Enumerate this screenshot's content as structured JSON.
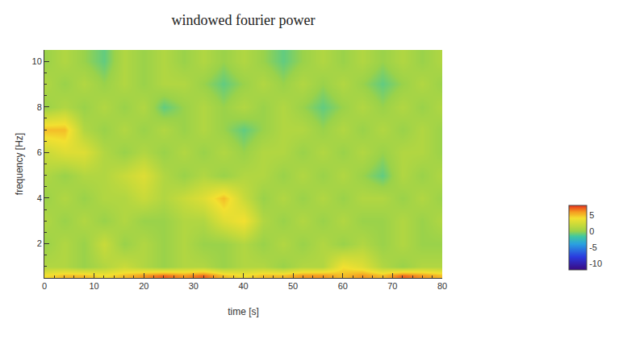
{
  "chart_data": {
    "type": "heatmap",
    "title": "windowed fourier power",
    "x_label": "time [s]",
    "y_label": "frequency [Hz]",
    "x": [
      0,
      4,
      8,
      12,
      16,
      20,
      24,
      28,
      32,
      36,
      40,
      44,
      48,
      52,
      56,
      60,
      64,
      68,
      72,
      76,
      80
    ],
    "y": [
      0.6,
      1,
      2,
      3,
      4,
      5,
      6,
      7,
      8,
      9,
      10
    ],
    "z": [
      [
        4,
        5,
        5,
        4,
        5,
        6,
        7,
        6,
        7,
        5,
        4,
        5,
        5,
        6,
        6,
        5,
        6,
        5,
        7,
        6,
        5
      ],
      [
        1,
        1,
        0,
        1,
        2,
        1,
        0,
        1,
        1,
        0,
        1,
        1,
        0,
        1,
        1,
        4,
        3,
        1,
        0,
        1,
        1
      ],
      [
        0,
        1,
        0,
        2,
        0,
        1,
        0,
        1,
        0,
        0,
        1,
        0,
        1,
        0,
        1,
        0,
        1,
        0,
        1,
        0,
        0
      ],
      [
        1,
        0,
        1,
        0,
        1,
        0,
        0,
        1,
        1,
        3,
        4,
        1,
        0,
        1,
        0,
        1,
        0,
        0,
        1,
        0,
        1
      ],
      [
        0,
        1,
        0,
        1,
        1,
        2,
        1,
        2,
        3,
        5,
        2,
        0,
        1,
        0,
        1,
        0,
        1,
        1,
        0,
        1,
        0
      ],
      [
        1,
        0,
        1,
        1,
        2,
        3,
        1,
        0,
        1,
        0,
        1,
        1,
        0,
        1,
        0,
        1,
        0,
        -1,
        1,
        0,
        1
      ],
      [
        2,
        3,
        3,
        1,
        0,
        1,
        0,
        1,
        0,
        1,
        0,
        1,
        1,
        0,
        1,
        0,
        1,
        0,
        1,
        1,
        0
      ],
      [
        5,
        5,
        1,
        0,
        1,
        0,
        1,
        0,
        1,
        0,
        -1,
        0,
        1,
        1,
        0,
        1,
        0,
        1,
        0,
        1,
        0
      ],
      [
        0,
        1,
        0,
        1,
        0,
        1,
        -1,
        0,
        1,
        0,
        1,
        0,
        1,
        0,
        -1,
        0,
        1,
        0,
        1,
        0,
        1
      ],
      [
        1,
        0,
        1,
        0,
        1,
        0,
        1,
        1,
        0,
        -1,
        0,
        1,
        0,
        1,
        0,
        1,
        0,
        -1,
        0,
        1,
        0
      ],
      [
        0,
        1,
        0,
        -1,
        1,
        0,
        1,
        0,
        1,
        0,
        1,
        0,
        -1,
        0,
        1,
        0,
        1,
        0,
        1,
        0,
        1
      ]
    ],
    "xlim": [
      0,
      80
    ],
    "ylim": [
      0.5,
      10.5
    ],
    "xticks": [
      0,
      10,
      20,
      30,
      40,
      50,
      60,
      70,
      80
    ],
    "yticks": [
      2,
      4,
      6,
      8,
      10
    ],
    "colorbar": {
      "range": [
        -12,
        8
      ],
      "ticks": [
        -10,
        -5,
        0,
        5
      ]
    }
  }
}
